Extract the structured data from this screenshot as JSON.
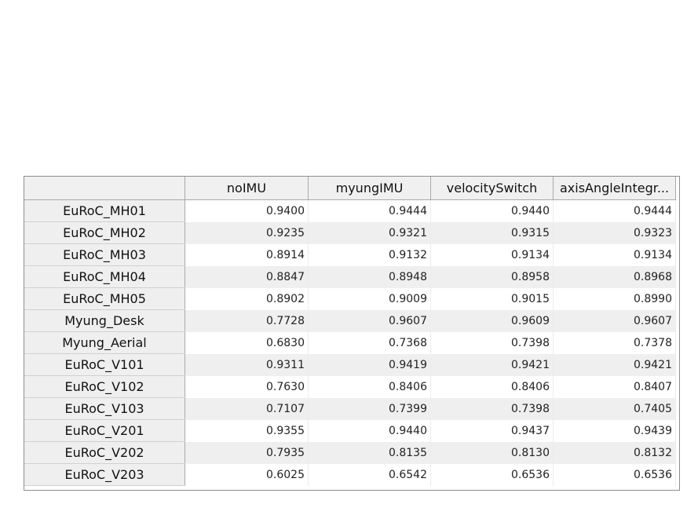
{
  "table": {
    "columns": [
      "noIMU",
      "myungIMU",
      "velocitySwitch",
      "axisAngleIntegr..."
    ],
    "rows": [
      {
        "name": "EuRoC_MH01",
        "values": [
          "0.9400",
          "0.9444",
          "0.9440",
          "0.9444"
        ]
      },
      {
        "name": "EuRoC_MH02",
        "values": [
          "0.9235",
          "0.9321",
          "0.9315",
          "0.9323"
        ]
      },
      {
        "name": "EuRoC_MH03",
        "values": [
          "0.8914",
          "0.9132",
          "0.9134",
          "0.9134"
        ]
      },
      {
        "name": "EuRoC_MH04",
        "values": [
          "0.8847",
          "0.8948",
          "0.8958",
          "0.8968"
        ]
      },
      {
        "name": "EuRoC_MH05",
        "values": [
          "0.8902",
          "0.9009",
          "0.9015",
          "0.8990"
        ]
      },
      {
        "name": "Myung_Desk",
        "values": [
          "0.7728",
          "0.9607",
          "0.9609",
          "0.9607"
        ]
      },
      {
        "name": "Myung_Aerial",
        "values": [
          "0.6830",
          "0.7368",
          "0.7398",
          "0.7378"
        ]
      },
      {
        "name": "EuRoC_V101",
        "values": [
          "0.9311",
          "0.9419",
          "0.9421",
          "0.9421"
        ]
      },
      {
        "name": "EuRoC_V102",
        "values": [
          "0.7630",
          "0.8406",
          "0.8406",
          "0.8407"
        ]
      },
      {
        "name": "EuRoC_V103",
        "values": [
          "0.7107",
          "0.7399",
          "0.7398",
          "0.7405"
        ]
      },
      {
        "name": "EuRoC_V201",
        "values": [
          "0.9355",
          "0.9440",
          "0.9437",
          "0.9439"
        ]
      },
      {
        "name": "EuRoC_V202",
        "values": [
          "0.7935",
          "0.8135",
          "0.8130",
          "0.8132"
        ]
      },
      {
        "name": "EuRoC_V203",
        "values": [
          "0.6025",
          "0.6542",
          "0.6536",
          "0.6536"
        ]
      }
    ]
  },
  "colors": {
    "header_bg": "#f0f0f0",
    "stripe_bg": "#efefef",
    "border": "#8e8e8e"
  }
}
